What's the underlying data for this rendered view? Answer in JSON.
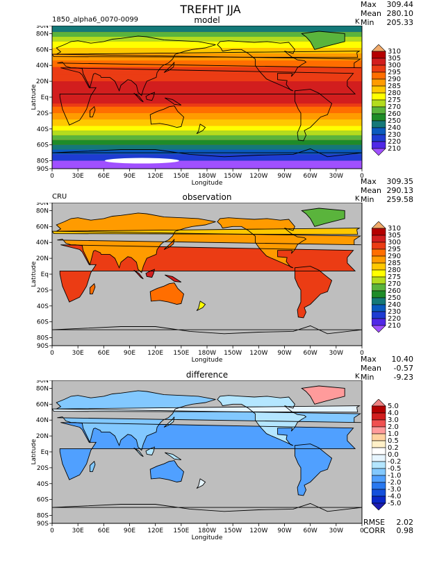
{
  "title": "TREFHT JJA",
  "case_label": "1850_alpha6_0070-0099",
  "colors": {
    "ocean_fill": "#bebebe",
    "land_line": "#000000",
    "ice": "#ffffff"
  },
  "panels": [
    {
      "title": "model",
      "left_label": "1850_alpha6_0070-0099",
      "units": "K",
      "stats": {
        "max_label": "Max",
        "max": "309.44",
        "mean_label": "Mean",
        "mean": "280.10",
        "min_label": "Min",
        "min": "205.33"
      },
      "colorbar": {
        "levels": [
          "310",
          "305",
          "300",
          "295",
          "290",
          "285",
          "280",
          "275",
          "270",
          "260",
          "250",
          "240",
          "230",
          "220",
          "210"
        ],
        "colors": [
          "#f0aa6a",
          "#b40000",
          "#d21e1e",
          "#eb3c14",
          "#ff6e00",
          "#ff9b00",
          "#ffc800",
          "#ffff00",
          "#b4dc1e",
          "#5ab43c",
          "#1e8c28",
          "#147878",
          "#0a5abe",
          "#1e3cd2",
          "#5028e6",
          "#a050ff"
        ]
      }
    },
    {
      "title": "observation",
      "left_label": "CRU",
      "units": "K",
      "stats": {
        "max_label": "Max",
        "max": "309.35",
        "mean_label": "Mean",
        "mean": "290.13",
        "min_label": "Min",
        "min": "259.58"
      },
      "colorbar": {
        "levels": [
          "310",
          "305",
          "300",
          "295",
          "290",
          "285",
          "280",
          "275",
          "270",
          "260",
          "250",
          "240",
          "230",
          "220",
          "210"
        ],
        "colors": [
          "#f0aa6a",
          "#b40000",
          "#d21e1e",
          "#eb3c14",
          "#ff6e00",
          "#ff9b00",
          "#ffc800",
          "#ffff00",
          "#b4dc1e",
          "#5ab43c",
          "#1e8c28",
          "#147878",
          "#0a5abe",
          "#1e3cd2",
          "#5028e6",
          "#a050ff"
        ]
      }
    },
    {
      "title": "difference",
      "left_label": "",
      "units": "K",
      "stats": {
        "max_label": "Max",
        "max": "10.40",
        "mean_label": "Mean",
        "mean": "-0.57",
        "min_label": "Min",
        "min": "-9.23"
      },
      "bottom_stats": {
        "rmse_label": "RMSE",
        "rmse": "2.02",
        "corr_label": "CORR",
        "corr": "0.98"
      },
      "colorbar": {
        "levels": [
          "5.0",
          "4.0",
          "3.0",
          "2.0",
          "1.0",
          "0.5",
          "0.2",
          "0.0",
          "-0.2",
          "-0.5",
          "-1.0",
          "-2.0",
          "-3.0",
          "-4.0",
          "-5.0"
        ],
        "colors": [
          "#f08282",
          "#b40000",
          "#d21e1e",
          "#f05050",
          "#ff9b9b",
          "#ffd2a0",
          "#fff0c8",
          "#ffffff",
          "#e6f5ff",
          "#b4e6ff",
          "#82c8ff",
          "#50a0ff",
          "#2878f0",
          "#1450dc",
          "#0a28c8",
          "#1e1eb4"
        ]
      }
    }
  ],
  "axes": {
    "xlabel": "Longitude",
    "ylabel": "Latitude",
    "xticks": [
      "0",
      "30E",
      "60E",
      "90E",
      "120E",
      "150E",
      "180W",
      "150W",
      "120W",
      "90W",
      "60W",
      "30W",
      "0"
    ],
    "yticks": [
      "90N",
      "80N",
      "60N",
      "40N",
      "20N",
      "Eq",
      "20S",
      "40S",
      "60S",
      "80S",
      "90S"
    ]
  },
  "chart_data": [
    {
      "type": "heatmap",
      "title": "model",
      "xlabel": "Longitude",
      "ylabel": "Latitude",
      "xlim": [
        0,
        360
      ],
      "ylim": [
        -90,
        90
      ],
      "zrange": [
        205.33,
        309.44
      ],
      "zmean": 280.1,
      "units": "K"
    },
    {
      "type": "heatmap",
      "title": "observation",
      "xlabel": "Longitude",
      "ylabel": "Latitude",
      "xlim": [
        0,
        360
      ],
      "ylim": [
        -90,
        90
      ],
      "zrange": [
        259.58,
        309.35
      ],
      "zmean": 290.13,
      "units": "K"
    },
    {
      "type": "heatmap",
      "title": "difference",
      "xlabel": "Longitude",
      "ylabel": "Latitude",
      "xlim": [
        0,
        360
      ],
      "ylim": [
        -90,
        90
      ],
      "zrange": [
        -9.23,
        10.4
      ],
      "zmean": -0.57,
      "rmse": 2.02,
      "corr": 0.98,
      "units": "K"
    }
  ]
}
